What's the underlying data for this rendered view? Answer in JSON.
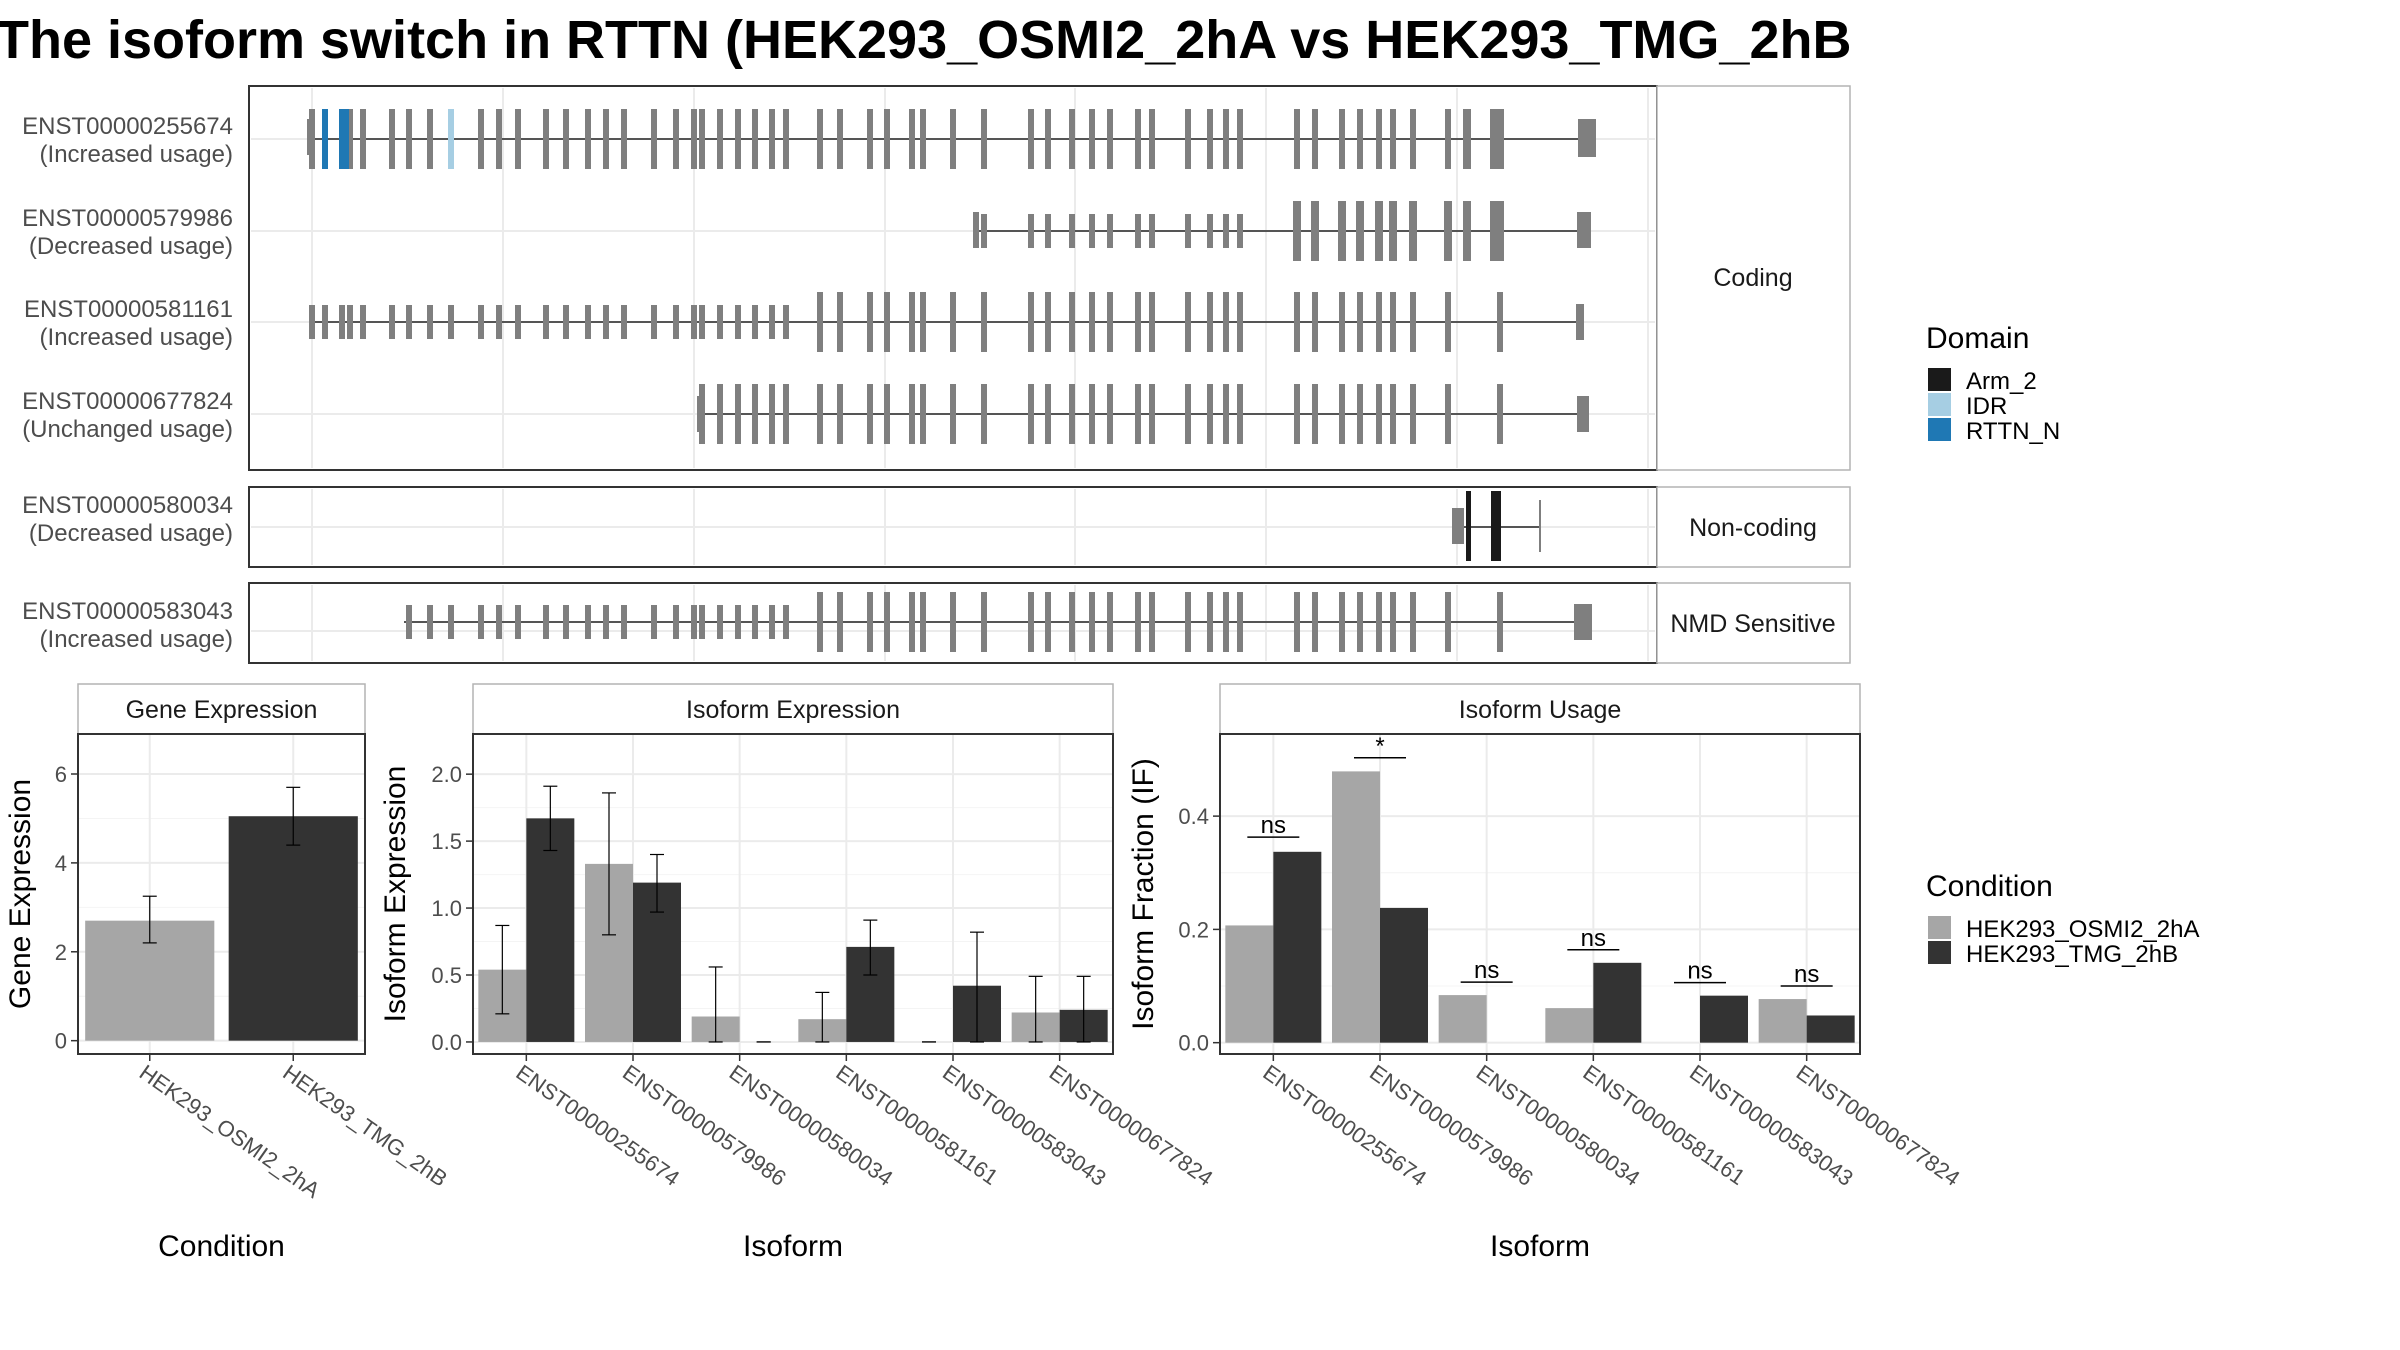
{
  "title": "The isoform switch in RTTN (HEK293_OSMI2_2hA vs HEK293_TMG_2hB",
  "colors": {
    "cond_a": "#a6a6a6",
    "cond_b": "#333333",
    "exon": "#7f7f7f",
    "Arm_2": "#1a1a1a",
    "IDR": "#a6cee3",
    "RTTN_N": "#1f78b4"
  },
  "structure": {
    "groups": [
      {
        "label": "Coding",
        "rows": [
          {
            "id": "ENST00000255674",
            "usage": "(Increased usage)"
          },
          {
            "id": "ENST00000579986",
            "usage": "(Decreased usage)"
          },
          {
            "id": "ENST00000581161",
            "usage": "(Increased usage)"
          },
          {
            "id": "ENST00000677824",
            "usage": "(Unchanged usage)"
          }
        ]
      },
      {
        "label": "Non-coding",
        "rows": [
          {
            "id": "ENST00000580034",
            "usage": "(Decreased usage)"
          }
        ]
      },
      {
        "label": "NMD Sensitive",
        "rows": [
          {
            "id": "ENST00000583043",
            "usage": "(Increased usage)"
          }
        ]
      }
    ]
  },
  "legend_domain": {
    "title": "Domain",
    "items": [
      "Arm_2",
      "IDR",
      "RTTN_N"
    ]
  },
  "legend_condition": {
    "title": "Condition",
    "items": [
      "HEK293_OSMI2_2hA",
      "HEK293_TMG_2hB"
    ]
  },
  "chart_data": [
    {
      "type": "bar",
      "title": "Gene Expression",
      "xlabel": "Condition",
      "ylabel": "Gene Expression",
      "categories": [
        "HEK293_OSMI2_2hA",
        "HEK293_TMG_2hB"
      ],
      "values": [
        2.7,
        5.05
      ],
      "errors_low": [
        2.2,
        4.4
      ],
      "errors_high": [
        3.25,
        5.7
      ],
      "ylim": [
        -0.3,
        6.9
      ],
      "yticks": [
        0,
        2,
        4,
        6
      ]
    },
    {
      "type": "bar",
      "title": "Isoform Expression",
      "xlabel": "Isoform",
      "ylabel": "Isoform Expression",
      "categories": [
        "ENST00000255674",
        "ENST00000579986",
        "ENST00000580034",
        "ENST00000581161",
        "ENST00000583043",
        "ENST00000677824"
      ],
      "series": [
        {
          "name": "HEK293_OSMI2_2hA",
          "values": [
            0.54,
            1.33,
            0.19,
            0.17,
            0.0,
            0.22
          ],
          "low": [
            0.21,
            0.8,
            0.0,
            0.0,
            0.0,
            0.0
          ],
          "high": [
            0.87,
            1.86,
            0.56,
            0.37,
            0.0,
            0.49
          ]
        },
        {
          "name": "HEK293_TMG_2hB",
          "values": [
            1.67,
            1.19,
            0.0,
            0.71,
            0.42,
            0.24
          ],
          "low": [
            1.43,
            0.97,
            0.0,
            0.5,
            0.0,
            0.0
          ],
          "high": [
            1.91,
            1.4,
            0.0,
            0.91,
            0.82,
            0.49
          ]
        }
      ],
      "ylim": [
        -0.09,
        2.3
      ],
      "yticks": [
        0.0,
        0.5,
        1.0,
        1.5,
        2.0
      ]
    },
    {
      "type": "bar",
      "title": "Isoform Usage",
      "xlabel": "Isoform",
      "ylabel": "Isoform Fraction (IF)",
      "categories": [
        "ENST00000255674",
        "ENST00000579986",
        "ENST00000580034",
        "ENST00000581161",
        "ENST00000583043",
        "ENST00000677824"
      ],
      "series": [
        {
          "name": "HEK293_OSMI2_2hA",
          "values": [
            0.207,
            0.479,
            0.084,
            0.061,
            0.0,
            0.077
          ]
        },
        {
          "name": "HEK293_TMG_2hB",
          "values": [
            0.337,
            0.238,
            0.0,
            0.141,
            0.083,
            0.048
          ]
        }
      ],
      "significance": [
        "ns",
        "*",
        "ns",
        "ns",
        "ns",
        "ns"
      ],
      "sig_y": [
        0.363,
        0.503,
        0.107,
        0.164,
        0.106,
        0.1
      ],
      "ylim": [
        -0.02,
        0.545
      ],
      "yticks": [
        0.0,
        0.2,
        0.4
      ]
    }
  ]
}
